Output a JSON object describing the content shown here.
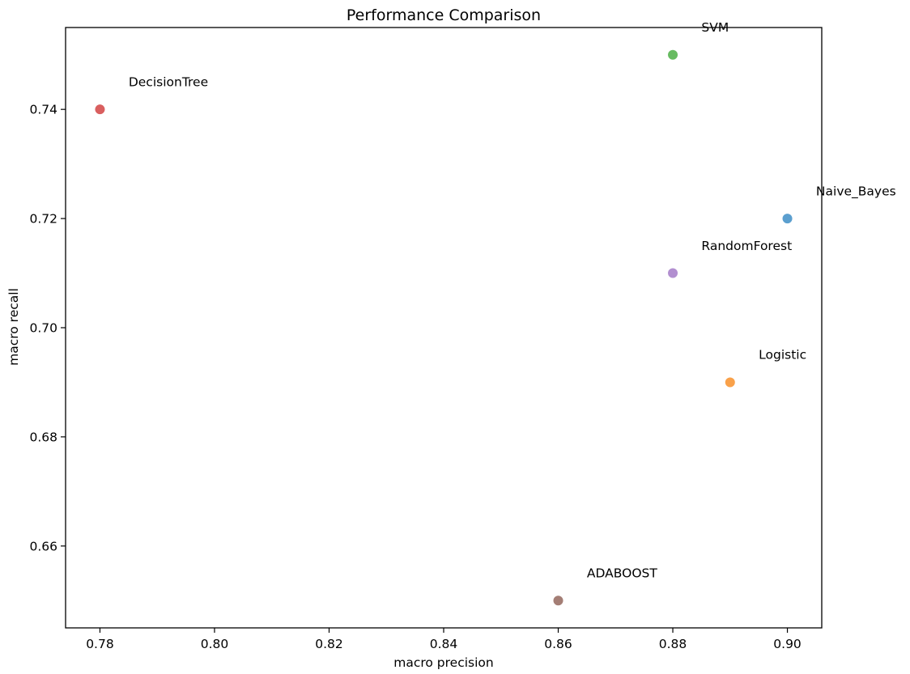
{
  "chart_data": {
    "type": "scatter",
    "title": "Performance Comparison",
    "xlabel": "macro precision",
    "ylabel": "macro recall",
    "xlim": [
      0.774,
      0.906
    ],
    "ylim": [
      0.645,
      0.755
    ],
    "xticks": [
      0.78,
      0.8,
      0.82,
      0.84,
      0.86,
      0.88,
      0.9
    ],
    "xtick_labels": [
      "0.78",
      "0.80",
      "0.82",
      "0.84",
      "0.86",
      "0.88",
      "0.90"
    ],
    "yticks": [
      0.66,
      0.68,
      0.7,
      0.72,
      0.74
    ],
    "ytick_labels": [
      "0.66",
      "0.68",
      "0.70",
      "0.72",
      "0.74"
    ],
    "grid": false,
    "reference_line": {
      "type": "y=x",
      "style": "dashed",
      "color": "#000000"
    },
    "points": [
      {
        "label": "Naive_Bayes",
        "x": 0.9,
        "y": 0.72,
        "color": "#5b9fcf"
      },
      {
        "label": "Logistic",
        "x": 0.89,
        "y": 0.69,
        "color": "#f9a14a"
      },
      {
        "label": "SVM",
        "x": 0.88,
        "y": 0.75,
        "color": "#67bb61"
      },
      {
        "label": "DecisionTree",
        "x": 0.78,
        "y": 0.74,
        "color": "#d95f5f"
      },
      {
        "label": "RandomForest",
        "x": 0.88,
        "y": 0.71,
        "color": "#b28fd0"
      },
      {
        "label": "ADABOOST",
        "x": 0.86,
        "y": 0.65,
        "color": "#a47e75"
      }
    ],
    "annotation_offset": {
      "dx": 0.005,
      "dy": 0.005
    }
  }
}
